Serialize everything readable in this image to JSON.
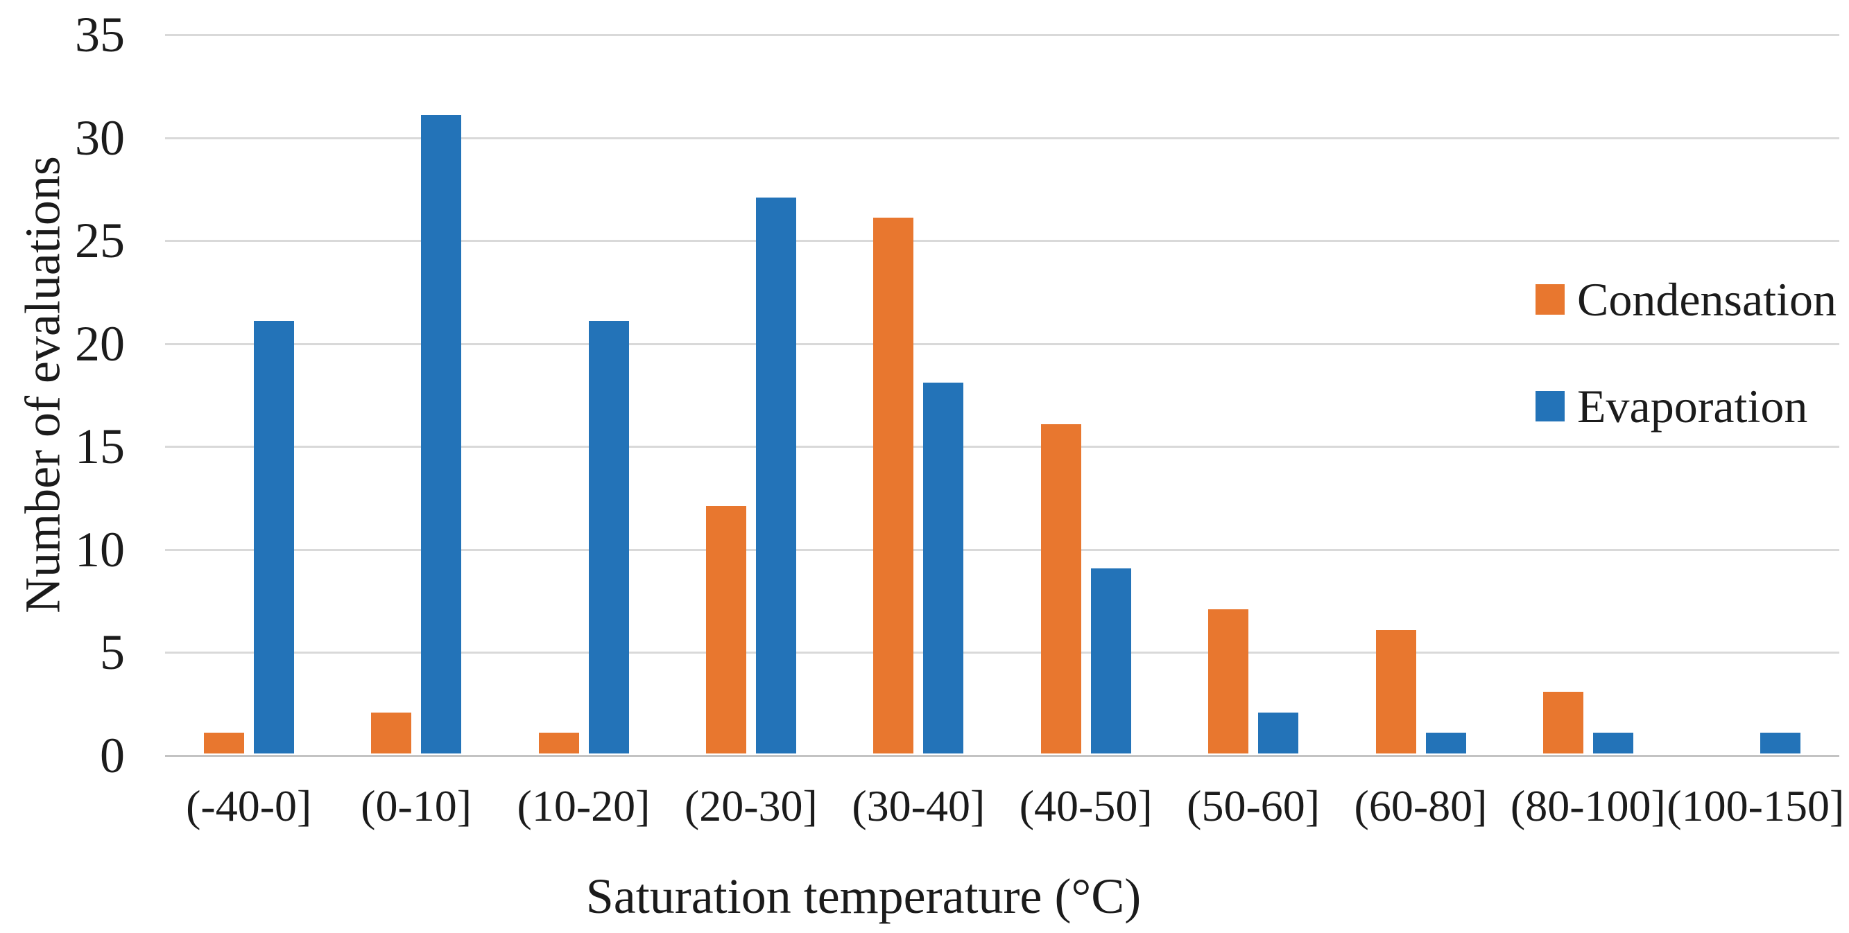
{
  "chart_data": {
    "type": "bar",
    "title": "",
    "categories": [
      "(-40-0]",
      "(0-10]",
      "(10-20]",
      "(20-30]",
      "(30-40]",
      "(40-50]",
      "(50-60]",
      "(60-80]",
      "(80-100]",
      "(100-150]"
    ],
    "series": [
      {
        "name": "Condensation",
        "color": "#E8772F",
        "values": [
          1,
          2,
          1,
          12,
          26,
          16,
          7,
          6,
          3,
          0
        ]
      },
      {
        "name": "Evaporation",
        "color": "#2373B8",
        "values": [
          21,
          31,
          21,
          27,
          18,
          9,
          2,
          1,
          1,
          1
        ]
      }
    ],
    "xlabel": "Saturation temperature (°C)",
    "ylabel": "Number of evaluations",
    "ylim": [
      0,
      35
    ],
    "yticks": [
      0,
      5,
      10,
      15,
      20,
      25,
      30,
      35
    ],
    "grid": true,
    "grid_axis": "y",
    "legend_position": "right"
  },
  "colors": {
    "condensation": "#E8772F",
    "evaporation": "#2373B8",
    "gridline": "#d9d9d9",
    "axis_baseline": "#c3c3c3",
    "text": "#1b1b1b",
    "background": "#ffffff"
  }
}
